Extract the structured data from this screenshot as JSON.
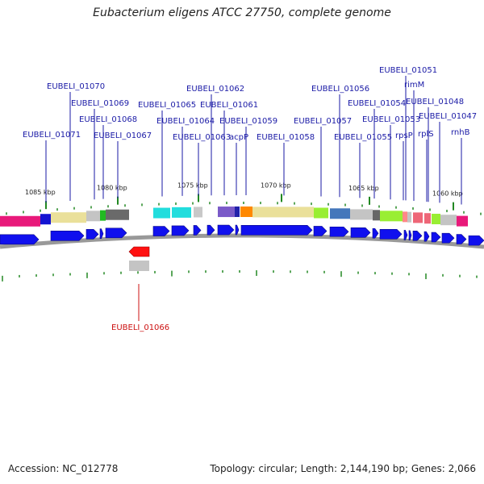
{
  "title": "Eubacterium eligens ATCC 27750, complete genome",
  "footer": {
    "accession": "Accession: NC_012778",
    "summary": "Topology: circular; Length: 2,144,190 bp; Genes: 2,066"
  },
  "colors": {
    "label_forward": "#1a1aa6",
    "label_reverse": "#cc1111",
    "tick": "#228822",
    "forward_gene": "#1010ee",
    "reverse_gene": "#ff1111",
    "backbone": "#999999"
  },
  "scale": {
    "ticks": [
      {
        "kbp": 1085,
        "label": "1085 kbp"
      },
      {
        "kbp": 1080,
        "label": "1080 kbp"
      },
      {
        "kbp": 1075,
        "label": "1075 kbp"
      },
      {
        "kbp": 1070,
        "label": "1070 kbp"
      },
      {
        "kbp": 1065,
        "label": "1065 kbp"
      },
      {
        "kbp": 1060,
        "label": "1060 kbp"
      }
    ]
  },
  "genes": {
    "forward": [
      {
        "label": "EUBELI_01071"
      },
      {
        "label": "EUBELI_01070"
      },
      {
        "label": "EUBELI_01069"
      },
      {
        "label": "EUBELI_01068"
      },
      {
        "label": "EUBELI_01067"
      },
      {
        "label": "EUBELI_01065"
      },
      {
        "label": "EUBELI_01064"
      },
      {
        "label": "EUBELI_01063"
      },
      {
        "label": "EUBELI_01062"
      },
      {
        "label": "EUBELI_01061"
      },
      {
        "label": "acpP"
      },
      {
        "label": "EUBELI_01059"
      },
      {
        "label": "EUBELI_01058"
      },
      {
        "label": "EUBELI_01057"
      },
      {
        "label": "EUBELI_01056"
      },
      {
        "label": "EUBELI_01055"
      },
      {
        "label": "EUBELI_01054"
      },
      {
        "label": "EUBELI_01053"
      },
      {
        "label": "rpsP"
      },
      {
        "label": "EUBELI_01051"
      },
      {
        "label": "rimM"
      },
      {
        "label": "EUBELI_01048"
      },
      {
        "label": "rplS"
      },
      {
        "label": "EUBELI_01047"
      },
      {
        "label": "rnhB"
      }
    ],
    "reverse": [
      {
        "label": "EUBELI_01066"
      }
    ]
  }
}
